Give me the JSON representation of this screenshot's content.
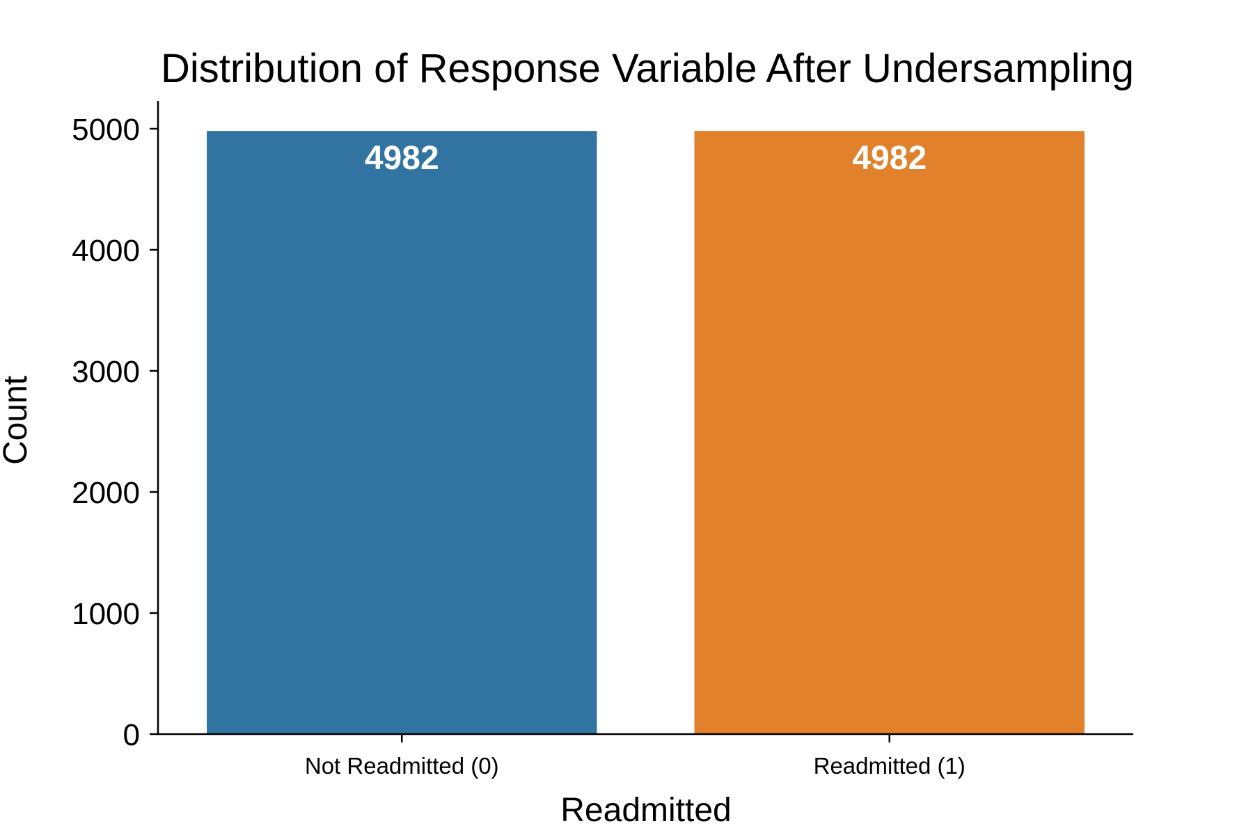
{
  "chart_data": {
    "type": "bar",
    "title": "Distribution of Response Variable After Undersampling",
    "xlabel": "Readmitted",
    "ylabel": "Count",
    "categories": [
      "Not Readmitted (0)",
      "Readmitted (1)"
    ],
    "values": [
      4982,
      4982
    ],
    "data_labels": [
      "4982",
      "4982"
    ],
    "colors": [
      "#3274a1",
      "#e1812c"
    ],
    "ylim": [
      0,
      5230
    ],
    "yticks": [
      0,
      1000,
      2000,
      3000,
      4000,
      5000
    ],
    "ytick_labels": [
      "0",
      "1000",
      "2000",
      "3000",
      "4000",
      "5000"
    ],
    "grid": false,
    "legend": "none"
  }
}
